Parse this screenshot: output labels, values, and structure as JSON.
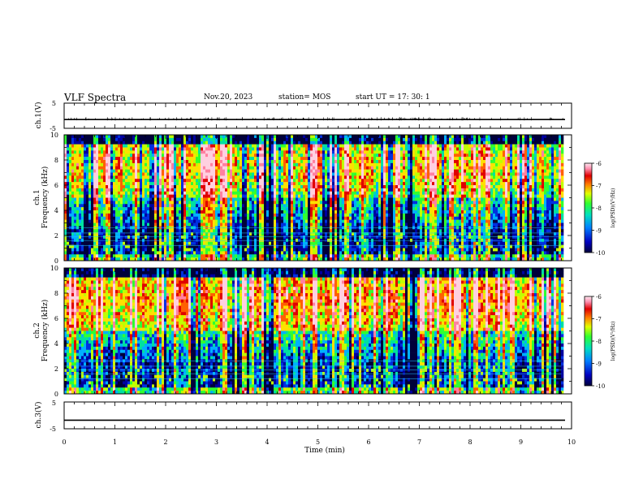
{
  "header": {
    "title": "VLF Spectra",
    "date": "Nov.20, 2023",
    "station": "station= MOS",
    "start_ut": "start  UT =   17: 30: 1"
  },
  "colors": {
    "spectrum": [
      "#00003a",
      "#0000a0",
      "#0030e0",
      "#00b0ff",
      "#00e0a0",
      "#30ff30",
      "#c0ff00",
      "#ffe000",
      "#ff6000",
      "#e00000",
      "#ff80a0",
      "#ffd0e0"
    ]
  },
  "chart_data": [
    {
      "id": "ch1v",
      "type": "line",
      "ylabel": "ch.1(V)",
      "ylim": [
        -5,
        5
      ],
      "yticks": [
        "5",
        "-5"
      ],
      "level": -1.5
    },
    {
      "id": "ch1spec",
      "type": "heatmap",
      "ylabel_line1": "ch.1",
      "ylabel_line2": "Frequency (kHz)",
      "ylim": [
        0,
        10
      ],
      "yticks": [
        "0",
        "2",
        "4",
        "6",
        "8",
        "10"
      ],
      "colorbar": {
        "label": "log(PSD)(V²/Hz)",
        "ticks": [
          "-6",
          "-7",
          "-8",
          "-9",
          "-10"
        ],
        "range": [
          -10,
          -6
        ]
      },
      "gap_minutes": [
        4.0,
        6.8
      ]
    },
    {
      "id": "ch2spec",
      "type": "heatmap",
      "ylabel_line1": "ch.2",
      "ylabel_line2": "Frequency (kHz)",
      "ylim": [
        0,
        10
      ],
      "yticks": [
        "0",
        "2",
        "4",
        "6",
        "8",
        "10"
      ],
      "colorbar": {
        "label": "log(PSD)(V²/Hz)",
        "ticks": [
          "-6",
          "-7",
          "-8",
          "-9",
          "-10"
        ],
        "range": [
          -10,
          -6
        ]
      },
      "gap_minutes": [
        4.0,
        6.8
      ]
    },
    {
      "id": "ch3v",
      "type": "line",
      "ylabel": "ch.3(V)",
      "ylim": [
        -5,
        5
      ],
      "yticks": [
        "5",
        "-5"
      ],
      "level": -1.8
    }
  ],
  "xaxis": {
    "label": "Time  (min)",
    "range": [
      0,
      10
    ],
    "data_end": 9.8,
    "ticks": [
      "0",
      "1",
      "2",
      "3",
      "4",
      "5",
      "6",
      "7",
      "8",
      "9",
      "10"
    ]
  }
}
